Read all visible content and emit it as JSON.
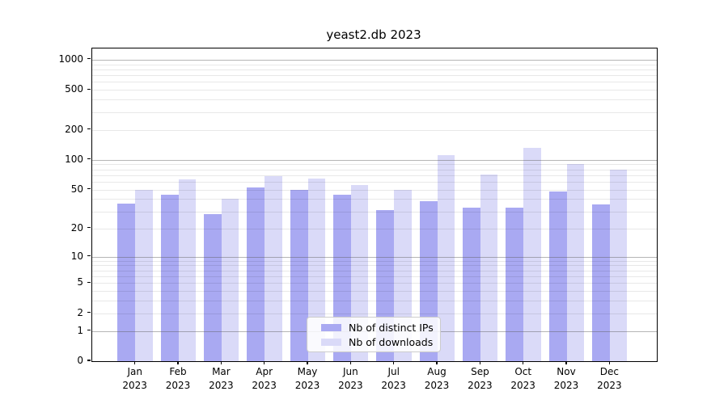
{
  "title": "yeast2.db 2023",
  "chart_data": {
    "type": "bar",
    "categories": [
      "Jan",
      "Feb",
      "Mar",
      "Apr",
      "May",
      "Jun",
      "Jul",
      "Aug",
      "Sep",
      "Oct",
      "Nov",
      "Dec"
    ],
    "year_label": "2023",
    "series": [
      {
        "name": "Nb of distinct IPs",
        "color": "#a9a9f2",
        "values": [
          36,
          44,
          28,
          53,
          50,
          44,
          31,
          38,
          33,
          33,
          48,
          35
        ]
      },
      {
        "name": "Nb of downloads",
        "color": "#dadaf8",
        "values": [
          50,
          63,
          40,
          68,
          65,
          56,
          50,
          112,
          71,
          132,
          91,
          79
        ]
      }
    ],
    "yscale": "log1p",
    "ylim": [
      0,
      1291
    ],
    "yticks": [
      0,
      1,
      2,
      5,
      10,
      20,
      50,
      100,
      200,
      500,
      1000
    ],
    "ytick_labels": [
      "0",
      "1",
      "2",
      "5",
      "10",
      "20",
      "50",
      "100",
      "200",
      "500",
      "1000"
    ],
    "grid_major": [
      1,
      10,
      100,
      1000
    ],
    "grid_minor": [
      2,
      3,
      4,
      5,
      6,
      7,
      8,
      9,
      20,
      30,
      40,
      50,
      60,
      70,
      80,
      90,
      200,
      300,
      400,
      500,
      600,
      700,
      800,
      900
    ],
    "grid_on": true,
    "legend_position": "lower center"
  },
  "colors": {
    "bar_distinct_ips": "#a9a9f2",
    "bar_downloads": "#dadaf8",
    "major_grid": "#8c8c8c",
    "minor_grid": "#e8e8e8",
    "spine": "#000000"
  }
}
